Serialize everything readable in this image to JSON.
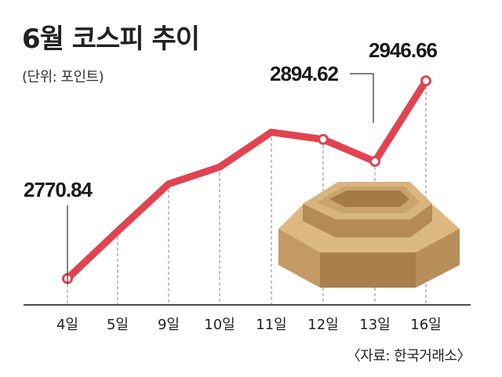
{
  "title": "6월 코스피 추이",
  "unit_label": "(단위: 포인트)",
  "source": "〈자료: 한국거래소〉",
  "chart_data": {
    "type": "line",
    "title": "6월 코스피 추이",
    "xlabel": "",
    "ylabel": "",
    "categories": [
      "4일",
      "5일",
      "9일",
      "10일",
      "11일",
      "12일",
      "13일",
      "16일"
    ],
    "series": [
      {
        "values": [
          2770.84,
          2813,
          2855,
          2870,
          2901,
          2894.62,
          2875,
          2946.66
        ]
      }
    ],
    "data_labels": [
      {
        "index": 0,
        "text": "2770.84"
      },
      {
        "index": 5,
        "text": "2894.62"
      },
      {
        "index": 7,
        "text": "2946.66"
      }
    ],
    "ylim": [
      2760,
      2960
    ],
    "grid": "vertical dashed",
    "legend": "none",
    "line_color": "#e1434f",
    "axis_color": "#4d4d4d"
  }
}
